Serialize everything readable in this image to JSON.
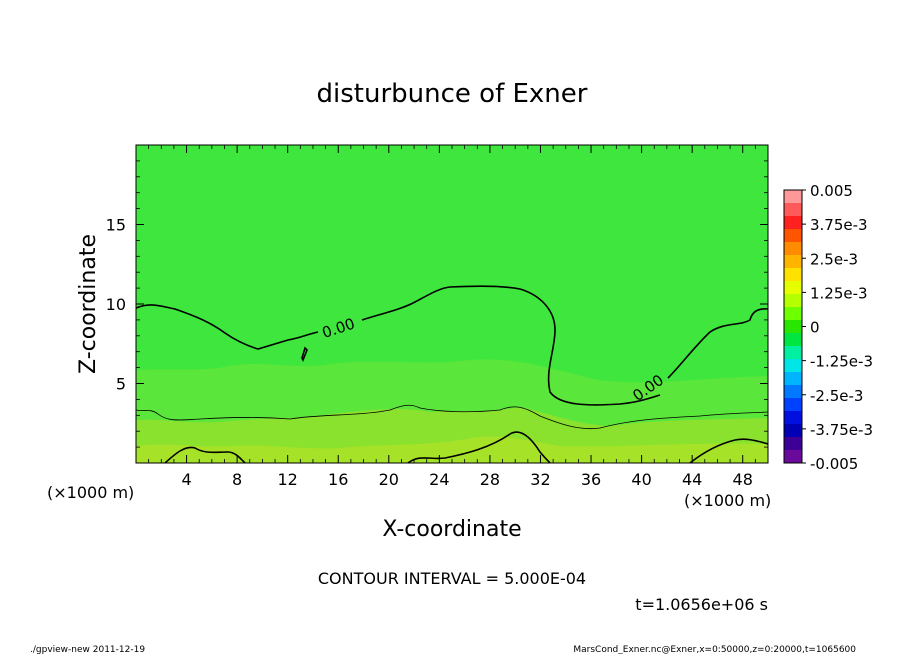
{
  "chart_data": {
    "type": "contour",
    "title": "disturbunce of Exner",
    "xlabel": "X-coordinate",
    "ylabel": "Z-coordinate",
    "x_unit_label": "(×1000 m)",
    "y_unit_label": "(×1000 m)",
    "xlim": [
      0,
      50
    ],
    "ylim": [
      0,
      20
    ],
    "x_ticks": [
      "4",
      "8",
      "12",
      "16",
      "20",
      "24",
      "28",
      "32",
      "36",
      "40",
      "44",
      "48"
    ],
    "x_tick_values": [
      4,
      8,
      12,
      16,
      20,
      24,
      28,
      32,
      36,
      40,
      44,
      48
    ],
    "y_ticks": [
      "5",
      "10",
      "15"
    ],
    "y_tick_values": [
      5,
      10,
      15
    ],
    "contour_labels": [
      "0.00",
      "0.00"
    ],
    "contour_interval_text": "CONTOUR INTERVAL = 5.000E-04",
    "time_text": "t=1.0656e+06 s",
    "colorbar": {
      "labels": [
        "0.005",
        "3.75e-3",
        "2.5e-3",
        "1.25e-3",
        "0",
        "-1.25e-3",
        "-2.5e-3",
        "-3.75e-3",
        "-0.005"
      ],
      "levels": [
        0.005,
        0.00375,
        0.0025,
        0.00125,
        0,
        -0.00125,
        -0.0025,
        -0.00375,
        -0.005
      ],
      "colors_top_to_bottom": [
        "#ff9999",
        "#ff5a5a",
        "#ff2020",
        "#ff5500",
        "#ff8c00",
        "#ffb400",
        "#ffe100",
        "#e6ff00",
        "#b4ff00",
        "#6eff00",
        "#28e600",
        "#00e640",
        "#00f0a0",
        "#00e6e6",
        "#00b4ff",
        "#0078ff",
        "#0040ff",
        "#0010e0",
        "#0000b4",
        "#3c0096",
        "#6a0a9a"
      ]
    },
    "field_colors": {
      "background": "#3ee63e",
      "band_mid": "#5ae63a",
      "band_low": "#8ae22e",
      "band_bottom": "#a6e228"
    }
  },
  "footer": {
    "left": "./gpview-new   2011-12-19",
    "right": "MarsCond_Exner.nc@Exner,x=0:50000,z=0:20000,t=1065600"
  }
}
